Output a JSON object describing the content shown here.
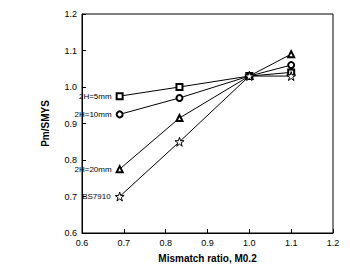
{
  "chart_data": {
    "type": "line",
    "x_label": "Mismatch ratio, M0.2",
    "y_label": "Pm/SMYS",
    "xlim": [
      0.6,
      1.2
    ],
    "xticks": [
      0.6,
      0.7,
      0.8,
      0.9,
      {
        "value": 1,
        "label": "1.0"
      },
      1.1,
      1.2
    ],
    "ylim": [
      0.6,
      1.2
    ],
    "yticks": [
      0.6,
      0.7,
      0.8,
      0.9,
      {
        "value": 1,
        "label": "1.0"
      },
      1.1,
      1.2
    ],
    "grid": false,
    "series": [
      {
        "name": "2H=5mm",
        "color": "#000000",
        "marker": "square",
        "line_style": "solid",
        "x": [
          0.69,
          0.833,
          1.0,
          1.1
        ],
        "values": [
          0.975,
          1.0,
          1.03,
          1.04
        ]
      },
      {
        "name": "2H=10mm",
        "color": "#000000",
        "marker": "circle",
        "line_style": "solid",
        "x": [
          0.69,
          0.833,
          1.0,
          1.1
        ],
        "values": [
          0.925,
          0.97,
          1.03,
          1.06
        ]
      },
      {
        "name": "2H=20mm",
        "color": "#000000",
        "marker": "triangle",
        "line_style": "solid",
        "x": [
          0.69,
          0.833,
          1.0,
          1.1
        ],
        "values": [
          0.775,
          0.915,
          1.03,
          1.09
        ]
      },
      {
        "name": "BS7910",
        "color": "#000000",
        "marker": "star",
        "line_style": "solid",
        "x": [
          0.69,
          0.833,
          1.0,
          1.1
        ],
        "values": [
          0.7,
          0.85,
          1.03,
          1.03
        ]
      }
    ]
  }
}
